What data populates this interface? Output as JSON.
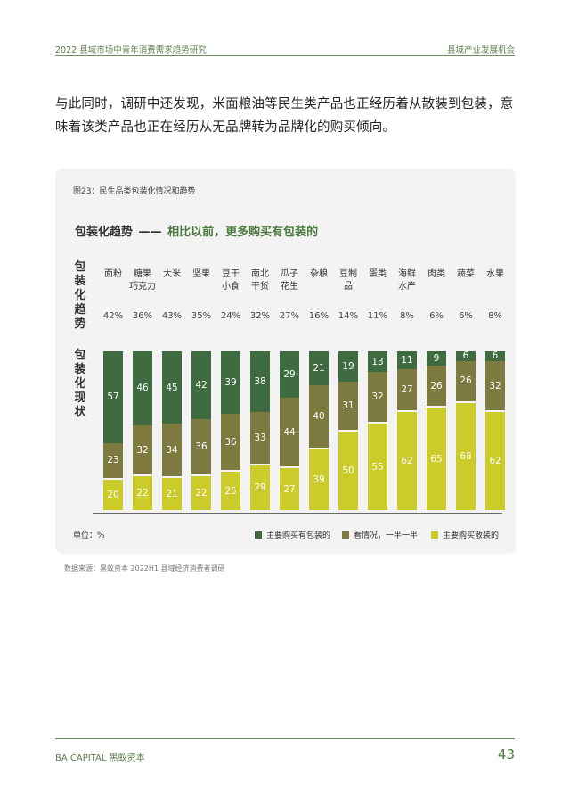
{
  "header": {
    "left": "2022 县域市场中青年消费需求趋势研究",
    "right": "县域产业发展机会"
  },
  "paragraph": "与此同时，调研中还发现，米面粮油等民生类产品也正经历着从散装到包装，意味着该类产品也正在经历从无品牌转为品牌化的购买倾向。",
  "figure_label": "图23：民生品类包装化情况和趋势",
  "title_main": "包装化趋势",
  "title_dash": "——",
  "title_sub": "相比以前，更多购买有包装的",
  "trend_label": "包装化趋势",
  "status_label": "包装化现状",
  "unit": "单位：%",
  "source": "数据来源：黑蚁资本 2022H1 县域经济消费者调研",
  "footer": {
    "brand": "BA CAPITAL 黑蚁资本",
    "page": "43"
  },
  "colors": {
    "packaged": "#3e6b40",
    "depends": "#7c7a3e",
    "bulk": "#cbcc2a",
    "accent": "#4a7a3e"
  },
  "chart_data": {
    "type": "bar",
    "stacked": true,
    "categories": [
      "面粉",
      "糖果巧克力",
      "大米",
      "坚果",
      "豆干小食",
      "南北干货",
      "瓜子花生",
      "杂粮",
      "豆制品",
      "蛋类",
      "海鲜水产",
      "肉类",
      "蔬菜",
      "水果"
    ],
    "category_lines": [
      [
        "面粉"
      ],
      [
        "糖果",
        "巧克力"
      ],
      [
        "大米"
      ],
      [
        "坚果"
      ],
      [
        "豆干",
        "小食"
      ],
      [
        "南北",
        "干货"
      ],
      [
        "瓜子",
        "花生"
      ],
      [
        "杂粮"
      ],
      [
        "豆制",
        "品"
      ],
      [
        "蛋类"
      ],
      [
        "海鲜",
        "水产"
      ],
      [
        "肉类"
      ],
      [
        "蔬菜"
      ],
      [
        "水果"
      ]
    ],
    "trend": [
      "42%",
      "36%",
      "43%",
      "35%",
      "24%",
      "32%",
      "27%",
      "16%",
      "14%",
      "11%",
      "8%",
      "6%",
      "6%",
      "8%"
    ],
    "series": [
      {
        "name": "主要购买有包装的",
        "color": "#3e6b40",
        "values": [
          57,
          46,
          45,
          42,
          39,
          38,
          29,
          21,
          19,
          13,
          11,
          9,
          6,
          6
        ]
      },
      {
        "name": "看情况，一半一半",
        "color": "#7c7a3e",
        "values": [
          23,
          32,
          34,
          36,
          36,
          33,
          44,
          40,
          31,
          32,
          27,
          26,
          26,
          32
        ]
      },
      {
        "name": "主要购买散装的",
        "color": "#cbcc2a",
        "values": [
          20,
          22,
          21,
          22,
          25,
          29,
          27,
          39,
          50,
          55,
          62,
          65,
          68,
          62
        ]
      }
    ],
    "ylim": [
      0,
      100
    ],
    "legend_position": "bottom-right"
  }
}
